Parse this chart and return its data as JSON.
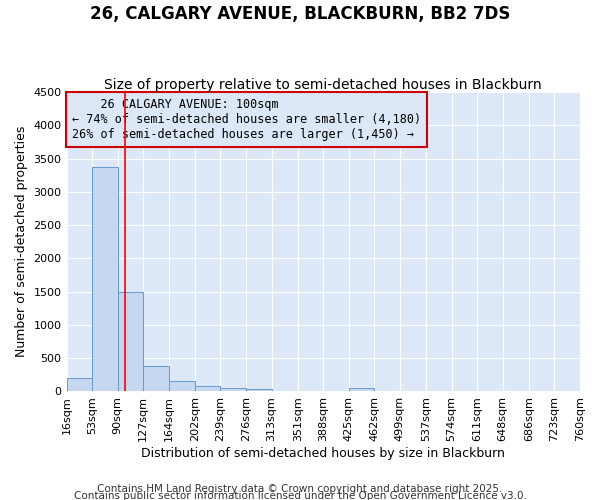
{
  "title": "26, CALGARY AVENUE, BLACKBURN, BB2 7DS",
  "subtitle": "Size of property relative to semi-detached houses in Blackburn",
  "xlabel": "Distribution of semi-detached houses by size in Blackburn",
  "ylabel": "Number of semi-detached properties",
  "annotation_title": "26 CALGARY AVENUE: 100sqm",
  "annotation_line1": "← 74% of semi-detached houses are smaller (4,180)",
  "annotation_line2": "26% of semi-detached houses are larger (1,450) →",
  "footer1": "Contains HM Land Registry data © Crown copyright and database right 2025.",
  "footer2": "Contains public sector information licensed under the Open Government Licence v3.0.",
  "bar_edges": [
    16,
    53,
    90,
    127,
    164,
    202,
    239,
    276,
    313,
    351,
    388,
    425,
    462,
    499,
    537,
    574,
    611,
    648,
    686,
    723,
    760
  ],
  "bar_heights": [
    200,
    3380,
    1500,
    380,
    150,
    75,
    55,
    40,
    5,
    5,
    5,
    55,
    5,
    0,
    0,
    0,
    0,
    0,
    0,
    0
  ],
  "bar_color": "#c5d8f0",
  "bar_edgecolor": "#6699cc",
  "red_line_x": 100,
  "ylim": [
    0,
    4500
  ],
  "yticks": [
    0,
    500,
    1000,
    1500,
    2000,
    2500,
    3000,
    3500,
    4000,
    4500
  ],
  "plot_bg_color": "#dce8f8",
  "fig_bg_color": "#ffffff",
  "grid_color": "#ffffff",
  "annotation_box_facecolor": "#dce8f8",
  "annotation_box_edgecolor": "#cc0000",
  "title_fontsize": 12,
  "subtitle_fontsize": 10,
  "axis_label_fontsize": 9,
  "tick_fontsize": 8,
  "footer_fontsize": 7.5,
  "annotation_fontsize": 8.5
}
